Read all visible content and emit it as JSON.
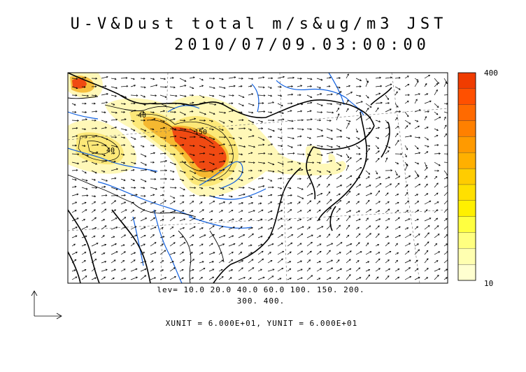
{
  "title": {
    "line1": "U-V&Dust total m/s&ug/m3 JST",
    "line2": "2010/07/09.03:00:00"
  },
  "contour_levels": {
    "line1": "lev= 10.0 20.0 40.0 60.0 100. 150. 200.",
    "line2": "300. 400."
  },
  "units": "XUNIT = 6.000E+01, YUNIT = 6.000E+01",
  "colorbar": {
    "max_label": "400",
    "min_label": "10",
    "levels": [
      10,
      20,
      40,
      60,
      100,
      150,
      200,
      300,
      400
    ],
    "colors": [
      "#ffffd0",
      "#ffffb0",
      "#ffff80",
      "#ffff40",
      "#fff000",
      "#ffe000",
      "#ffcc00",
      "#ffb000",
      "#ff9a00",
      "#ff8000",
      "#ff6a00",
      "#ff5000",
      "#f03c00"
    ]
  },
  "contour_labels": [
    "40",
    "40",
    "150"
  ],
  "colors": {
    "rivers": "#1060e0",
    "coast": "#000000",
    "dust_low": "#fff8b0",
    "dust_mid": "#f5d060",
    "dust_high": "#f04010"
  }
}
